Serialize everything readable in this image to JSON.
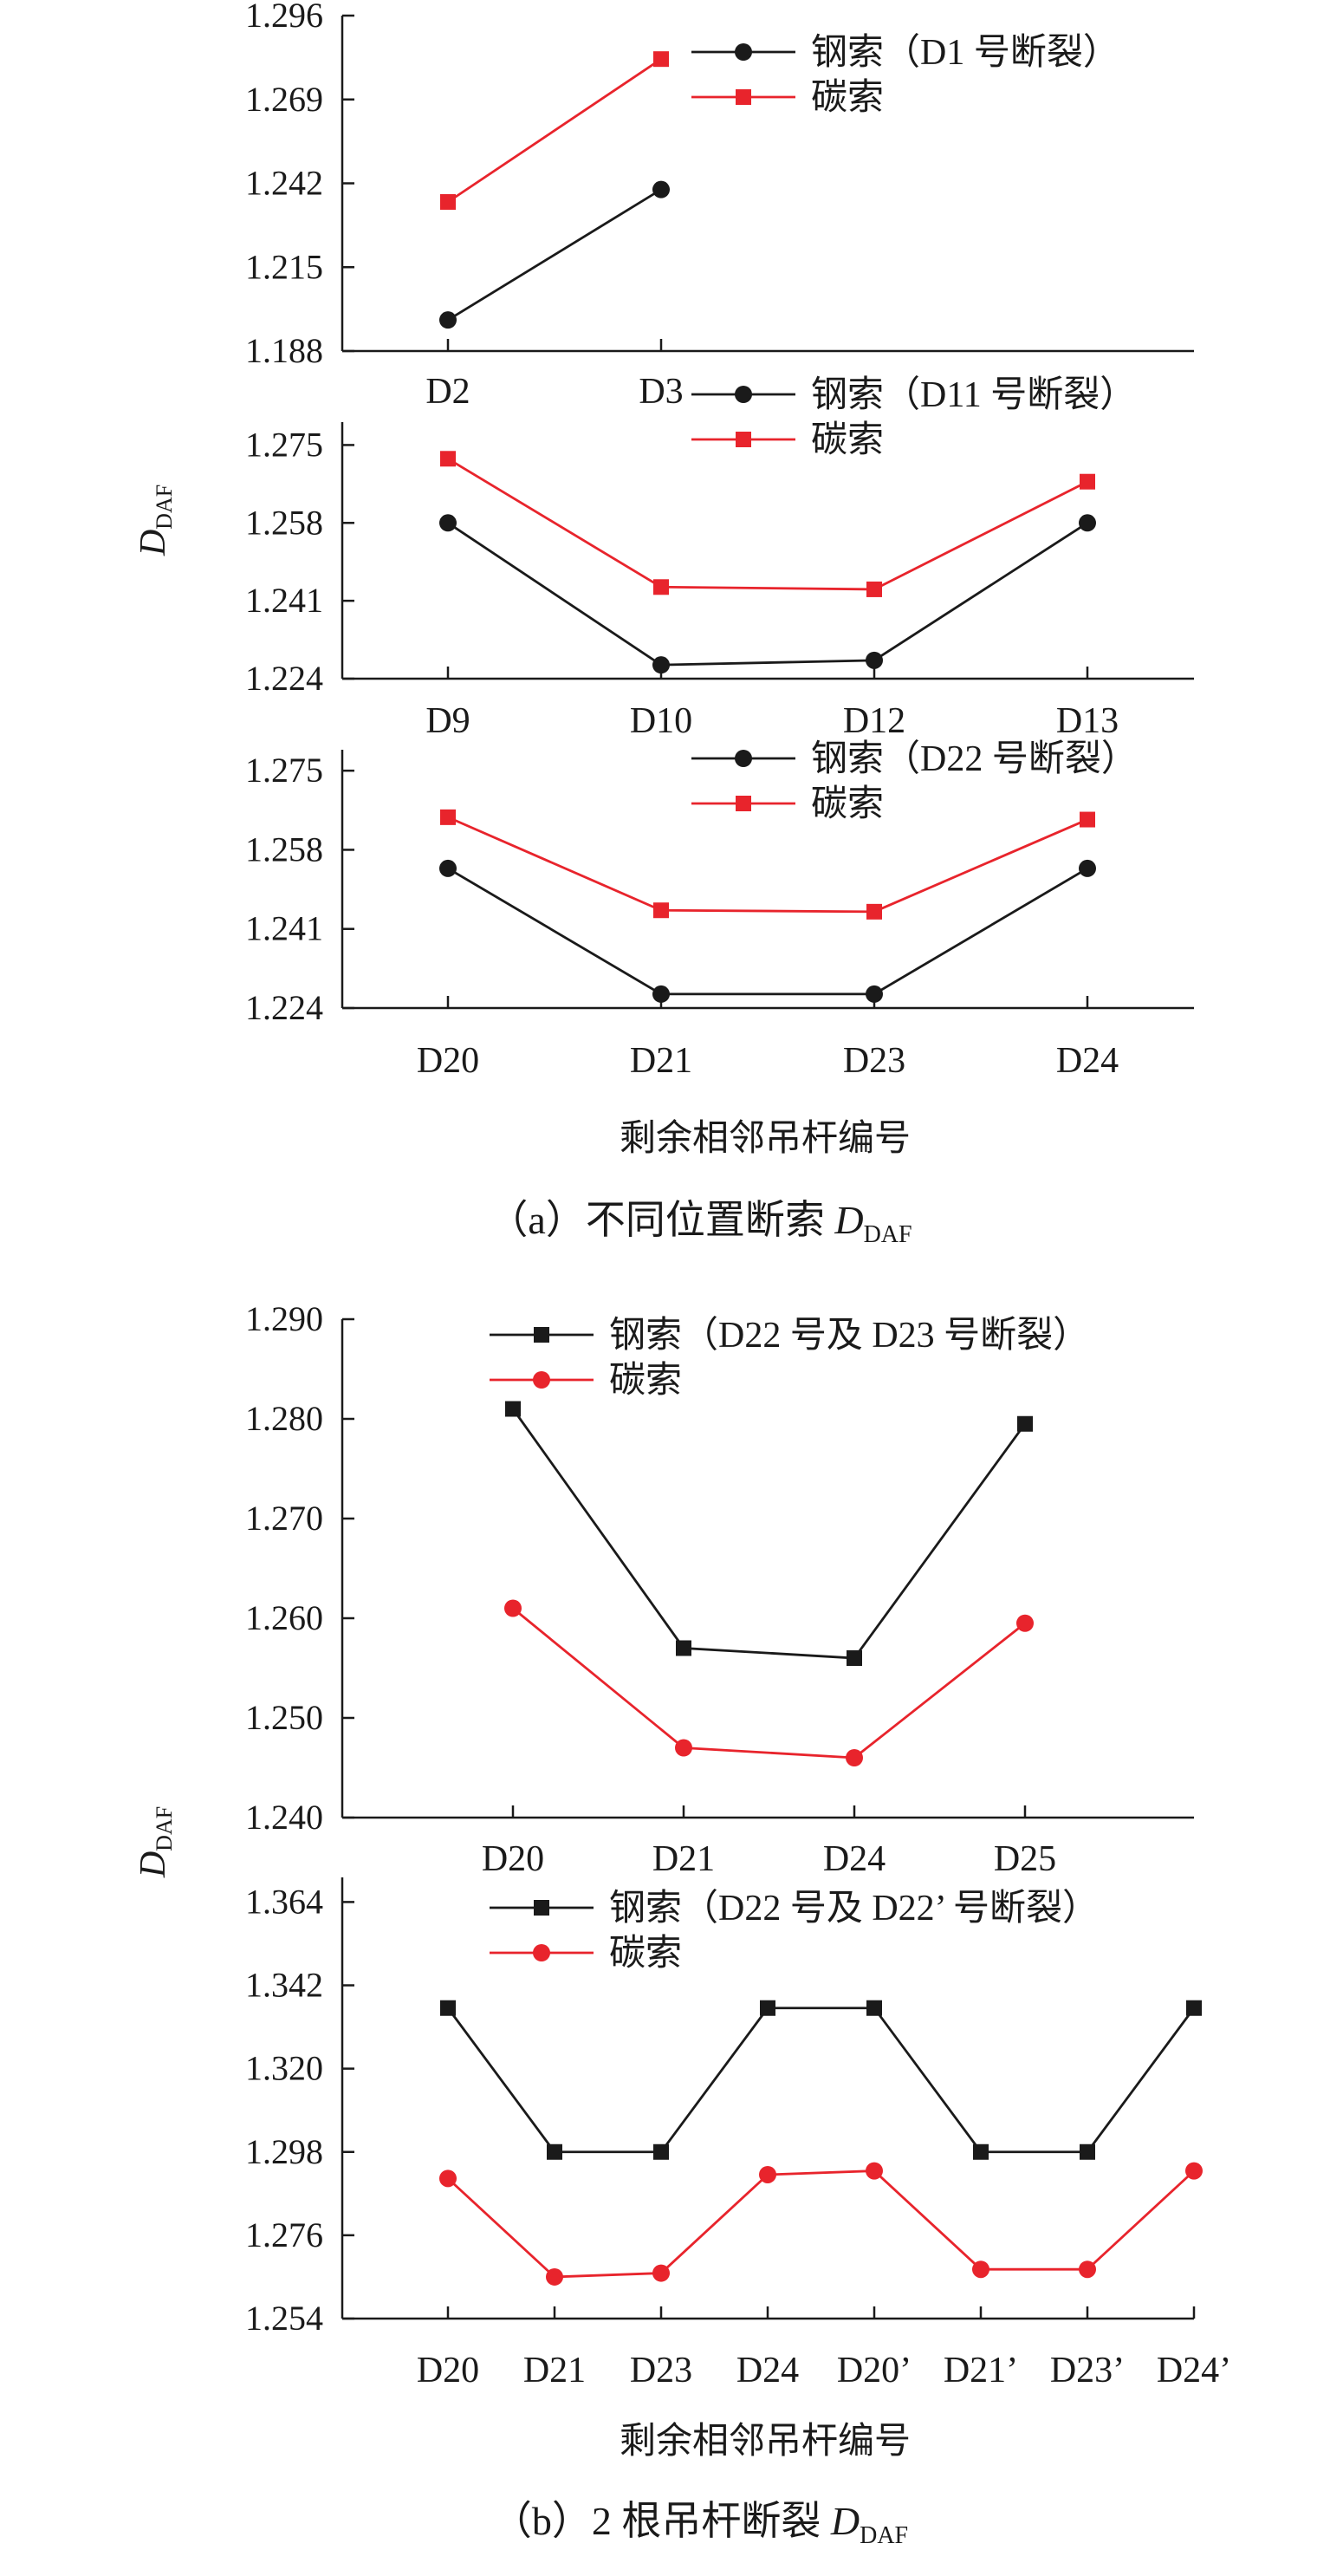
{
  "figure": {
    "caption_a": {
      "prefix": "（a）不同位置断索 ",
      "var": "D",
      "sub": "DAF"
    },
    "caption_b": {
      "prefix": "（b）2 根吊杆断裂 ",
      "var": "D",
      "sub": "DAF"
    },
    "ylabel_a": {
      "var": "D",
      "sub": "DAF"
    },
    "ylabel_b": {
      "var": "D",
      "sub": "DAF"
    },
    "xlabel_a": "剩余相邻吊杆编号",
    "xlabel_b": "剩余相邻吊杆编号"
  },
  "colors": {
    "steel": "#1a1a1a",
    "carbon": "#e8242c",
    "axis": "#1a1a1a"
  },
  "chart_data": [
    {
      "id": "a1",
      "type": "line",
      "categories": [
        "D2",
        "D3"
      ],
      "yticks": [
        "1.188",
        "1.215",
        "1.242",
        "1.269",
        "1.296"
      ],
      "ylim": [
        1.188,
        1.296
      ],
      "series": [
        {
          "name": "钢索（D1 号断裂）",
          "color": "#1a1a1a",
          "marker": "circle",
          "values": [
            1.198,
            1.24
          ]
        },
        {
          "name": "碳索",
          "color": "#e8242c",
          "marker": "square",
          "values": [
            1.236,
            1.282
          ]
        }
      ]
    },
    {
      "id": "a2",
      "type": "line",
      "categories": [
        "D9",
        "D10",
        "D12",
        "D13"
      ],
      "yticks": [
        "1.224",
        "1.241",
        "1.258",
        "1.275"
      ],
      "ylim": [
        1.224,
        1.28
      ],
      "series": [
        {
          "name": "钢索（D11 号断裂）",
          "color": "#1a1a1a",
          "marker": "circle",
          "values": [
            1.258,
            1.227,
            1.228,
            1.258
          ]
        },
        {
          "name": "碳索",
          "color": "#e8242c",
          "marker": "square",
          "values": [
            1.272,
            1.244,
            1.2435,
            1.267
          ]
        }
      ]
    },
    {
      "id": "a3",
      "type": "line",
      "categories": [
        "D20",
        "D21",
        "D23",
        "D24"
      ],
      "yticks": [
        "1.224",
        "1.241",
        "1.258",
        "1.275"
      ],
      "ylim": [
        1.224,
        1.2795
      ],
      "series": [
        {
          "name": "钢索（D22 号断裂）",
          "color": "#1a1a1a",
          "marker": "circle",
          "values": [
            1.254,
            1.227,
            1.227,
            1.254
          ]
        },
        {
          "name": "碳索",
          "color": "#e8242c",
          "marker": "square",
          "values": [
            1.265,
            1.245,
            1.2447,
            1.2645
          ]
        }
      ]
    },
    {
      "id": "b1",
      "type": "line",
      "categories": [
        "D20",
        "D21",
        "D24",
        "D25"
      ],
      "yticks": [
        "1.240",
        "1.250",
        "1.260",
        "1.270",
        "1.280",
        "1.290"
      ],
      "ylim": [
        1.24,
        1.29
      ],
      "series": [
        {
          "name": "钢索（D22 号及 D23 号断裂）",
          "color": "#1a1a1a",
          "marker": "square",
          "values": [
            1.281,
            1.257,
            1.256,
            1.2795
          ]
        },
        {
          "name": "碳索",
          "color": "#e8242c",
          "marker": "circle",
          "values": [
            1.261,
            1.247,
            1.246,
            1.2595
          ]
        }
      ]
    },
    {
      "id": "b2",
      "type": "line",
      "categories": [
        "D20",
        "D21",
        "D23",
        "D24",
        "D20’",
        "D21’",
        "D23’",
        "D24’"
      ],
      "yticks": [
        "1.254",
        "1.276",
        "1.298",
        "1.320",
        "1.342",
        "1.364"
      ],
      "ylim": [
        1.254,
        1.3705
      ],
      "series": [
        {
          "name": "钢索（D22 号及 D22’ 号断裂）",
          "color": "#1a1a1a",
          "marker": "square",
          "values": [
            1.336,
            1.298,
            1.298,
            1.336,
            1.336,
            1.298,
            1.298,
            1.336
          ]
        },
        {
          "name": "碳索",
          "color": "#e8242c",
          "marker": "circle",
          "values": [
            1.291,
            1.265,
            1.266,
            1.292,
            1.293,
            1.267,
            1.267,
            1.293
          ]
        }
      ]
    }
  ]
}
